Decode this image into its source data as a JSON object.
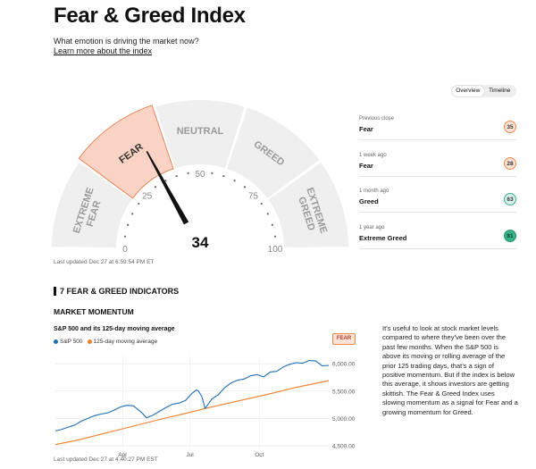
{
  "page": {
    "title": "Fear & Greed Index",
    "subtitle": "What emotion is driving the market now?",
    "learn_link": "Learn more about the index"
  },
  "toggle": {
    "overview": "Overview",
    "timeline": "Timeline",
    "active": "Overview"
  },
  "gauge": {
    "value": 34,
    "value_text": "34",
    "segments": [
      "EXTREME FEAR",
      "FEAR",
      "NEUTRAL",
      "GREED",
      "EXTREME GREED"
    ],
    "active_segment": "FEAR",
    "ticks": [
      "0",
      "25",
      "50",
      "75",
      "100"
    ],
    "colors": {
      "active_fill": "#fbd3c4",
      "active_stroke": "#e8865a",
      "segment_fill": "#efefef",
      "needle": "#111111"
    },
    "updated": "Last updated Dec 27 at 6:59:54 PM ET"
  },
  "history": [
    {
      "label": "Previous close",
      "value": "Fear",
      "score": "35",
      "bg": "#fde3d6",
      "border": "#f08a4b",
      "color": "#333"
    },
    {
      "label": "1 week ago",
      "value": "Fear",
      "score": "28",
      "bg": "#fde3d6",
      "border": "#f08a4b",
      "color": "#333"
    },
    {
      "label": "1 month ago",
      "value": "Greed",
      "score": "63",
      "bg": "#d6f1ea",
      "border": "#3fae8f",
      "color": "#333"
    },
    {
      "label": "1 year ago",
      "value": "Extreme Greed",
      "score": "81",
      "bg": "#35b48a",
      "border": "#2a8f6c",
      "color": "#0b3d2c"
    }
  ],
  "indicators": {
    "section_title": "7 FEAR & GREED INDICATORS",
    "market_momentum": {
      "title": "MARKET MOMENTUM",
      "chart_title": "S&P 500 and its 125-day moving average",
      "badge": "FEAR",
      "description": "It’s useful to look at stock market levels compared to where they’ve been over the past few months. When the S&P 500 is above its moving or rolling average of the prior 125 trading days, that’s a sign of positive momentum. But if the index is below this average, it shows investors are getting skittish. The Fear & Greed Index uses slowing momentum as a signal for Fear and a growing momentum for Greed.",
      "updated": "Last updated Dec 27 at 4:40:27 PM EST"
    }
  },
  "chart_data": {
    "type": "line",
    "title": "S&P 500 and its 125-day moving average",
    "x_labels": [
      "Apr",
      "Jul",
      "Oct"
    ],
    "y_ticks": [
      "4,500.00",
      "5,000.00",
      "5,500.00",
      "6,000.00"
    ],
    "ylim": [
      4450,
      6150
    ],
    "legend_placement": "top-left",
    "series": [
      {
        "name": "S&P 500",
        "color": "#1f6fb2",
        "x": [
          0,
          6,
          12,
          18,
          24,
          30,
          36,
          42,
          48,
          54,
          60,
          66,
          72,
          80,
          84,
          90,
          96,
          102,
          108,
          114,
          120,
          126,
          130,
          132,
          135,
          138,
          144,
          150,
          156,
          162,
          168,
          174,
          180,
          186,
          192,
          198,
          204,
          210,
          216,
          222,
          228,
          234,
          240,
          246,
          252
        ],
        "values": [
          4770,
          4800,
          4840,
          4880,
          4950,
          5000,
          5050,
          5080,
          5100,
          5150,
          5210,
          5240,
          5230,
          5100,
          5010,
          5060,
          5130,
          5200,
          5260,
          5280,
          5330,
          5460,
          5520,
          5500,
          5400,
          5180,
          5350,
          5430,
          5560,
          5650,
          5700,
          5720,
          5780,
          5800,
          5760,
          5850,
          5860,
          5940,
          5990,
          6020,
          6010,
          6060,
          6050,
          5960,
          5970
        ]
      },
      {
        "name": "125-day moving average",
        "color": "#f07f2a",
        "x": [
          0,
          20,
          40,
          60,
          80,
          100,
          120,
          140,
          160,
          180,
          200,
          220,
          240,
          252
        ],
        "values": [
          4520,
          4600,
          4700,
          4800,
          4900,
          5000,
          5090,
          5190,
          5280,
          5370,
          5460,
          5560,
          5640,
          5690
        ]
      }
    ]
  }
}
